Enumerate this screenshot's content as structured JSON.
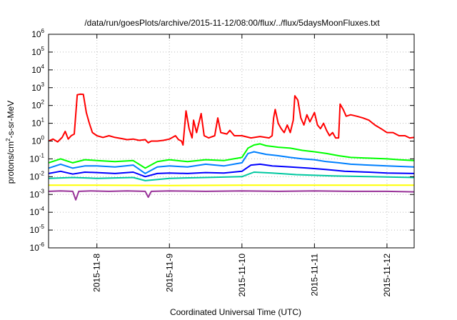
{
  "chart_data": {
    "type": "line",
    "title": "/data/run/goesPlots/archive/2015-11-12/08:00/flux/../flux/5daysMoonFluxes.txt",
    "xlabel": "Coordinated Universal Time (UTC)",
    "ylabel": {
      "main": "protons/cm",
      "sup": "2",
      "rest": "-s-sr-MeV"
    },
    "yscale": "log",
    "ylim": [
      1e-06,
      1000000.0
    ],
    "xlim": [
      "2015-11-07T08:00",
      "2015-11-12T09:00"
    ],
    "grid": true,
    "legend": "none",
    "y_ticks": [
      {
        "value": 1e-06,
        "base": "10",
        "exp": "-6"
      },
      {
        "value": 1e-05,
        "base": "10",
        "exp": "-5"
      },
      {
        "value": 0.0001,
        "base": "10",
        "exp": "-4"
      },
      {
        "value": 0.001,
        "base": "10",
        "exp": "-3"
      },
      {
        "value": 0.01,
        "base": "10",
        "exp": "-2"
      },
      {
        "value": 0.1,
        "base": "10",
        "exp": "-1"
      },
      {
        "value": 1,
        "base": "10",
        "exp": "0"
      },
      {
        "value": 10.0,
        "base": "10",
        "exp": "1"
      },
      {
        "value": 100.0,
        "base": "10",
        "exp": "2"
      },
      {
        "value": 1000.0,
        "base": "10",
        "exp": "3"
      },
      {
        "value": 10000.0,
        "base": "10",
        "exp": "4"
      },
      {
        "value": 100000.0,
        "base": "10",
        "exp": "5"
      },
      {
        "value": 1000000.0,
        "base": "10",
        "exp": "6"
      }
    ],
    "x_ticks": [
      {
        "t": "2015-11-08T00:00",
        "label": "2015-11-8"
      },
      {
        "t": "2015-11-09T00:00",
        "label": "2015-11-9"
      },
      {
        "t": "2015-11-10T00:00",
        "label": "2015-11-10"
      },
      {
        "t": "2015-11-11T00:00",
        "label": "2015-11-11"
      },
      {
        "t": "2015-11-12T00:00",
        "label": "2015-11-12"
      }
    ],
    "series": [
      {
        "color": "#ff0000",
        "points": [
          [
            "2015-11-07T08:00",
            1.0
          ],
          [
            "2015-11-07T09:30",
            1.3
          ],
          [
            "2015-11-07T11:00",
            0.9
          ],
          [
            "2015-11-07T12:30",
            1.6
          ],
          [
            "2015-11-07T13:30",
            3.5
          ],
          [
            "2015-11-07T14:30",
            1.3
          ],
          [
            "2015-11-07T15:30",
            2.0
          ],
          [
            "2015-11-07T16:30",
            2.5
          ],
          [
            "2015-11-07T17:30",
            400
          ],
          [
            "2015-11-07T18:30",
            430
          ],
          [
            "2015-11-07T19:30",
            420
          ],
          [
            "2015-11-07T20:30",
            40
          ],
          [
            "2015-11-07T21:30",
            10
          ],
          [
            "2015-11-07T22:30",
            3.0
          ],
          [
            "2015-11-08T00:00",
            2.0
          ],
          [
            "2015-11-08T02:00",
            1.6
          ],
          [
            "2015-11-08T04:00",
            2.0
          ],
          [
            "2015-11-08T06:00",
            1.6
          ],
          [
            "2015-11-08T08:00",
            1.4
          ],
          [
            "2015-11-08T10:00",
            1.2
          ],
          [
            "2015-11-08T12:00",
            1.3
          ],
          [
            "2015-11-08T14:00",
            1.1
          ],
          [
            "2015-11-08T16:00",
            1.2
          ],
          [
            "2015-11-08T17:00",
            0.8
          ],
          [
            "2015-11-08T18:00",
            1.0
          ],
          [
            "2015-11-08T20:00",
            1.0
          ],
          [
            "2015-11-08T22:00",
            1.1
          ],
          [
            "2015-11-09T00:00",
            1.3
          ],
          [
            "2015-11-09T02:00",
            2.0
          ],
          [
            "2015-11-09T03:00",
            1.2
          ],
          [
            "2015-11-09T04:00",
            1.0
          ],
          [
            "2015-11-09T04:30",
            0.6
          ],
          [
            "2015-11-09T05:30",
            50
          ],
          [
            "2015-11-09T06:30",
            5.0
          ],
          [
            "2015-11-09T07:30",
            1.5
          ],
          [
            "2015-11-09T08:00",
            15
          ],
          [
            "2015-11-09T09:00",
            3.0
          ],
          [
            "2015-11-09T10:30",
            35
          ],
          [
            "2015-11-09T11:30",
            2.0
          ],
          [
            "2015-11-09T13:00",
            1.5
          ],
          [
            "2015-11-09T15:00",
            2.0
          ],
          [
            "2015-11-09T16:00",
            20
          ],
          [
            "2015-11-09T17:00",
            3.0
          ],
          [
            "2015-11-09T19:00",
            2.5
          ],
          [
            "2015-11-09T20:00",
            4.0
          ],
          [
            "2015-11-09T21:30",
            2.0
          ],
          [
            "2015-11-10T00:00",
            2.0
          ],
          [
            "2015-11-10T03:00",
            1.5
          ],
          [
            "2015-11-10T06:00",
            1.8
          ],
          [
            "2015-11-10T09:00",
            1.5
          ],
          [
            "2015-11-10T10:00",
            2.0
          ],
          [
            "2015-11-10T10:30",
            20
          ],
          [
            "2015-11-10T11:00",
            60
          ],
          [
            "2015-11-10T12:00",
            10
          ],
          [
            "2015-11-10T13:00",
            5.0
          ],
          [
            "2015-11-10T14:00",
            3.0
          ],
          [
            "2015-11-10T15:00",
            8.0
          ],
          [
            "2015-11-10T16:00",
            3.0
          ],
          [
            "2015-11-10T17:00",
            15
          ],
          [
            "2015-11-10T17:30",
            350
          ],
          [
            "2015-11-10T18:30",
            200
          ],
          [
            "2015-11-10T19:30",
            20
          ],
          [
            "2015-11-10T20:30",
            8.0
          ],
          [
            "2015-11-10T21:30",
            30
          ],
          [
            "2015-11-10T22:30",
            12
          ],
          [
            "2015-11-11T00:00",
            40
          ],
          [
            "2015-11-11T01:00",
            8.0
          ],
          [
            "2015-11-11T02:00",
            5.0
          ],
          [
            "2015-11-11T03:00",
            10
          ],
          [
            "2015-11-11T04:00",
            4.0
          ],
          [
            "2015-11-11T05:00",
            2.0
          ],
          [
            "2015-11-11T06:00",
            3.0
          ],
          [
            "2015-11-11T07:00",
            1.5
          ],
          [
            "2015-11-11T08:00",
            1.5
          ],
          [
            "2015-11-11T08:30",
            120
          ],
          [
            "2015-11-11T09:30",
            60
          ],
          [
            "2015-11-11T10:30",
            25
          ],
          [
            "2015-11-11T12:00",
            30
          ],
          [
            "2015-11-11T14:00",
            25
          ],
          [
            "2015-11-11T16:00",
            20
          ],
          [
            "2015-11-11T18:00",
            15
          ],
          [
            "2015-11-11T20:00",
            8.0
          ],
          [
            "2015-11-11T22:00",
            5.0
          ],
          [
            "2015-11-12T00:00",
            3.0
          ],
          [
            "2015-11-12T02:00",
            3.0
          ],
          [
            "2015-11-12T04:00",
            2.0
          ],
          [
            "2015-11-12T06:00",
            2.0
          ],
          [
            "2015-11-12T07:30",
            1.5
          ],
          [
            "2015-11-12T09:00",
            1.6
          ]
        ]
      },
      {
        "color": "#00ff00",
        "points": [
          [
            "2015-11-07T08:00",
            0.06
          ],
          [
            "2015-11-07T12:00",
            0.1
          ],
          [
            "2015-11-07T16:00",
            0.06
          ],
          [
            "2015-11-07T20:00",
            0.09
          ],
          [
            "2015-11-08T00:00",
            0.08
          ],
          [
            "2015-11-08T06:00",
            0.07
          ],
          [
            "2015-11-08T12:00",
            0.08
          ],
          [
            "2015-11-08T16:00",
            0.03
          ],
          [
            "2015-11-08T20:00",
            0.07
          ],
          [
            "2015-11-09T00:00",
            0.09
          ],
          [
            "2015-11-09T06:00",
            0.07
          ],
          [
            "2015-11-09T12:00",
            0.09
          ],
          [
            "2015-11-09T18:00",
            0.08
          ],
          [
            "2015-11-10T00:00",
            0.12
          ],
          [
            "2015-11-10T02:00",
            0.4
          ],
          [
            "2015-11-10T04:00",
            0.6
          ],
          [
            "2015-11-10T06:00",
            0.7
          ],
          [
            "2015-11-10T08:00",
            0.55
          ],
          [
            "2015-11-10T12:00",
            0.45
          ],
          [
            "2015-11-10T16:00",
            0.4
          ],
          [
            "2015-11-10T20:00",
            0.3
          ],
          [
            "2015-11-11T00:00",
            0.25
          ],
          [
            "2015-11-11T04:00",
            0.2
          ],
          [
            "2015-11-11T08:00",
            0.15
          ],
          [
            "2015-11-11T12:00",
            0.12
          ],
          [
            "2015-11-11T18:00",
            0.11
          ],
          [
            "2015-11-12T00:00",
            0.1
          ],
          [
            "2015-11-12T04:00",
            0.09
          ],
          [
            "2015-11-12T09:00",
            0.08
          ]
        ]
      },
      {
        "color": "#0080ff",
        "points": [
          [
            "2015-11-07T08:00",
            0.03
          ],
          [
            "2015-11-07T12:00",
            0.05
          ],
          [
            "2015-11-07T16:00",
            0.03
          ],
          [
            "2015-11-07T20:00",
            0.04
          ],
          [
            "2015-11-08T00:00",
            0.04
          ],
          [
            "2015-11-08T06:00",
            0.035
          ],
          [
            "2015-11-08T12:00",
            0.045
          ],
          [
            "2015-11-08T16:00",
            0.015
          ],
          [
            "2015-11-08T20:00",
            0.035
          ],
          [
            "2015-11-09T00:00",
            0.04
          ],
          [
            "2015-11-09T06:00",
            0.035
          ],
          [
            "2015-11-09T12:00",
            0.05
          ],
          [
            "2015-11-09T18:00",
            0.04
          ],
          [
            "2015-11-10T00:00",
            0.06
          ],
          [
            "2015-11-10T02:00",
            0.2
          ],
          [
            "2015-11-10T04:00",
            0.25
          ],
          [
            "2015-11-10T08:00",
            0.18
          ],
          [
            "2015-11-10T12:00",
            0.15
          ],
          [
            "2015-11-10T16:00",
            0.12
          ],
          [
            "2015-11-10T20:00",
            0.1
          ],
          [
            "2015-11-11T00:00",
            0.09
          ],
          [
            "2015-11-11T04:00",
            0.07
          ],
          [
            "2015-11-11T08:00",
            0.06
          ],
          [
            "2015-11-11T12:00",
            0.05
          ],
          [
            "2015-11-11T18:00",
            0.045
          ],
          [
            "2015-11-12T00:00",
            0.04
          ],
          [
            "2015-11-12T09:00",
            0.035
          ]
        ]
      },
      {
        "color": "#0000ff",
        "points": [
          [
            "2015-11-07T08:00",
            0.015
          ],
          [
            "2015-11-07T12:00",
            0.02
          ],
          [
            "2015-11-07T16:00",
            0.014
          ],
          [
            "2015-11-07T20:00",
            0.018
          ],
          [
            "2015-11-08T00:00",
            0.017
          ],
          [
            "2015-11-08T06:00",
            0.015
          ],
          [
            "2015-11-08T12:00",
            0.018
          ],
          [
            "2015-11-08T16:00",
            0.01
          ],
          [
            "2015-11-08T20:00",
            0.015
          ],
          [
            "2015-11-09T00:00",
            0.016
          ],
          [
            "2015-11-09T06:00",
            0.015
          ],
          [
            "2015-11-09T12:00",
            0.017
          ],
          [
            "2015-11-09T18:00",
            0.016
          ],
          [
            "2015-11-10T00:00",
            0.02
          ],
          [
            "2015-11-10T03:00",
            0.045
          ],
          [
            "2015-11-10T06:00",
            0.05
          ],
          [
            "2015-11-10T10:00",
            0.04
          ],
          [
            "2015-11-10T16:00",
            0.035
          ],
          [
            "2015-11-10T22:00",
            0.03
          ],
          [
            "2015-11-11T04:00",
            0.025
          ],
          [
            "2015-11-11T10:00",
            0.02
          ],
          [
            "2015-11-11T18:00",
            0.018
          ],
          [
            "2015-11-12T00:00",
            0.016
          ],
          [
            "2015-11-12T09:00",
            0.015
          ]
        ]
      },
      {
        "color": "#00c8a0",
        "points": [
          [
            "2015-11-07T08:00",
            0.008
          ],
          [
            "2015-11-07T16:00",
            0.009
          ],
          [
            "2015-11-08T00:00",
            0.008
          ],
          [
            "2015-11-08T12:00",
            0.009
          ],
          [
            "2015-11-08T16:00",
            0.006
          ],
          [
            "2015-11-09T00:00",
            0.008
          ],
          [
            "2015-11-09T12:00",
            0.009
          ],
          [
            "2015-11-10T00:00",
            0.01
          ],
          [
            "2015-11-10T04:00",
            0.018
          ],
          [
            "2015-11-10T10:00",
            0.016
          ],
          [
            "2015-11-10T18:00",
            0.013
          ],
          [
            "2015-11-11T06:00",
            0.011
          ],
          [
            "2015-11-11T18:00",
            0.01
          ],
          [
            "2015-11-12T09:00",
            0.009
          ]
        ]
      },
      {
        "color": "#ffff00",
        "points": [
          [
            "2015-11-07T08:00",
            0.0033
          ],
          [
            "2015-11-08T00:00",
            0.0033
          ],
          [
            "2015-11-09T00:00",
            0.0032
          ],
          [
            "2015-11-10T00:00",
            0.0033
          ],
          [
            "2015-11-11T00:00",
            0.0033
          ],
          [
            "2015-11-12T00:00",
            0.0033
          ],
          [
            "2015-11-12T09:00",
            0.0033
          ]
        ]
      },
      {
        "color": "#993399",
        "points": [
          [
            "2015-11-07T08:00",
            0.0015
          ],
          [
            "2015-11-07T12:00",
            0.0016
          ],
          [
            "2015-11-07T16:00",
            0.0015
          ],
          [
            "2015-11-07T17:00",
            0.0005
          ],
          [
            "2015-11-07T18:00",
            0.0015
          ],
          [
            "2015-11-07T22:00",
            0.0016
          ],
          [
            "2015-11-08T04:00",
            0.0015
          ],
          [
            "2015-11-08T10:00",
            0.0016
          ],
          [
            "2015-11-08T16:00",
            0.0015
          ],
          [
            "2015-11-08T17:00",
            0.0007
          ],
          [
            "2015-11-08T18:00",
            0.0015
          ],
          [
            "2015-11-09T00:00",
            0.0016
          ],
          [
            "2015-11-09T12:00",
            0.0015
          ],
          [
            "2015-11-10T00:00",
            0.0016
          ],
          [
            "2015-11-10T12:00",
            0.0015
          ],
          [
            "2015-11-11T00:00",
            0.0016
          ],
          [
            "2015-11-11T12:00",
            0.0015
          ],
          [
            "2015-11-12T00:00",
            0.0015
          ],
          [
            "2015-11-12T09:00",
            0.0014
          ]
        ]
      }
    ]
  }
}
